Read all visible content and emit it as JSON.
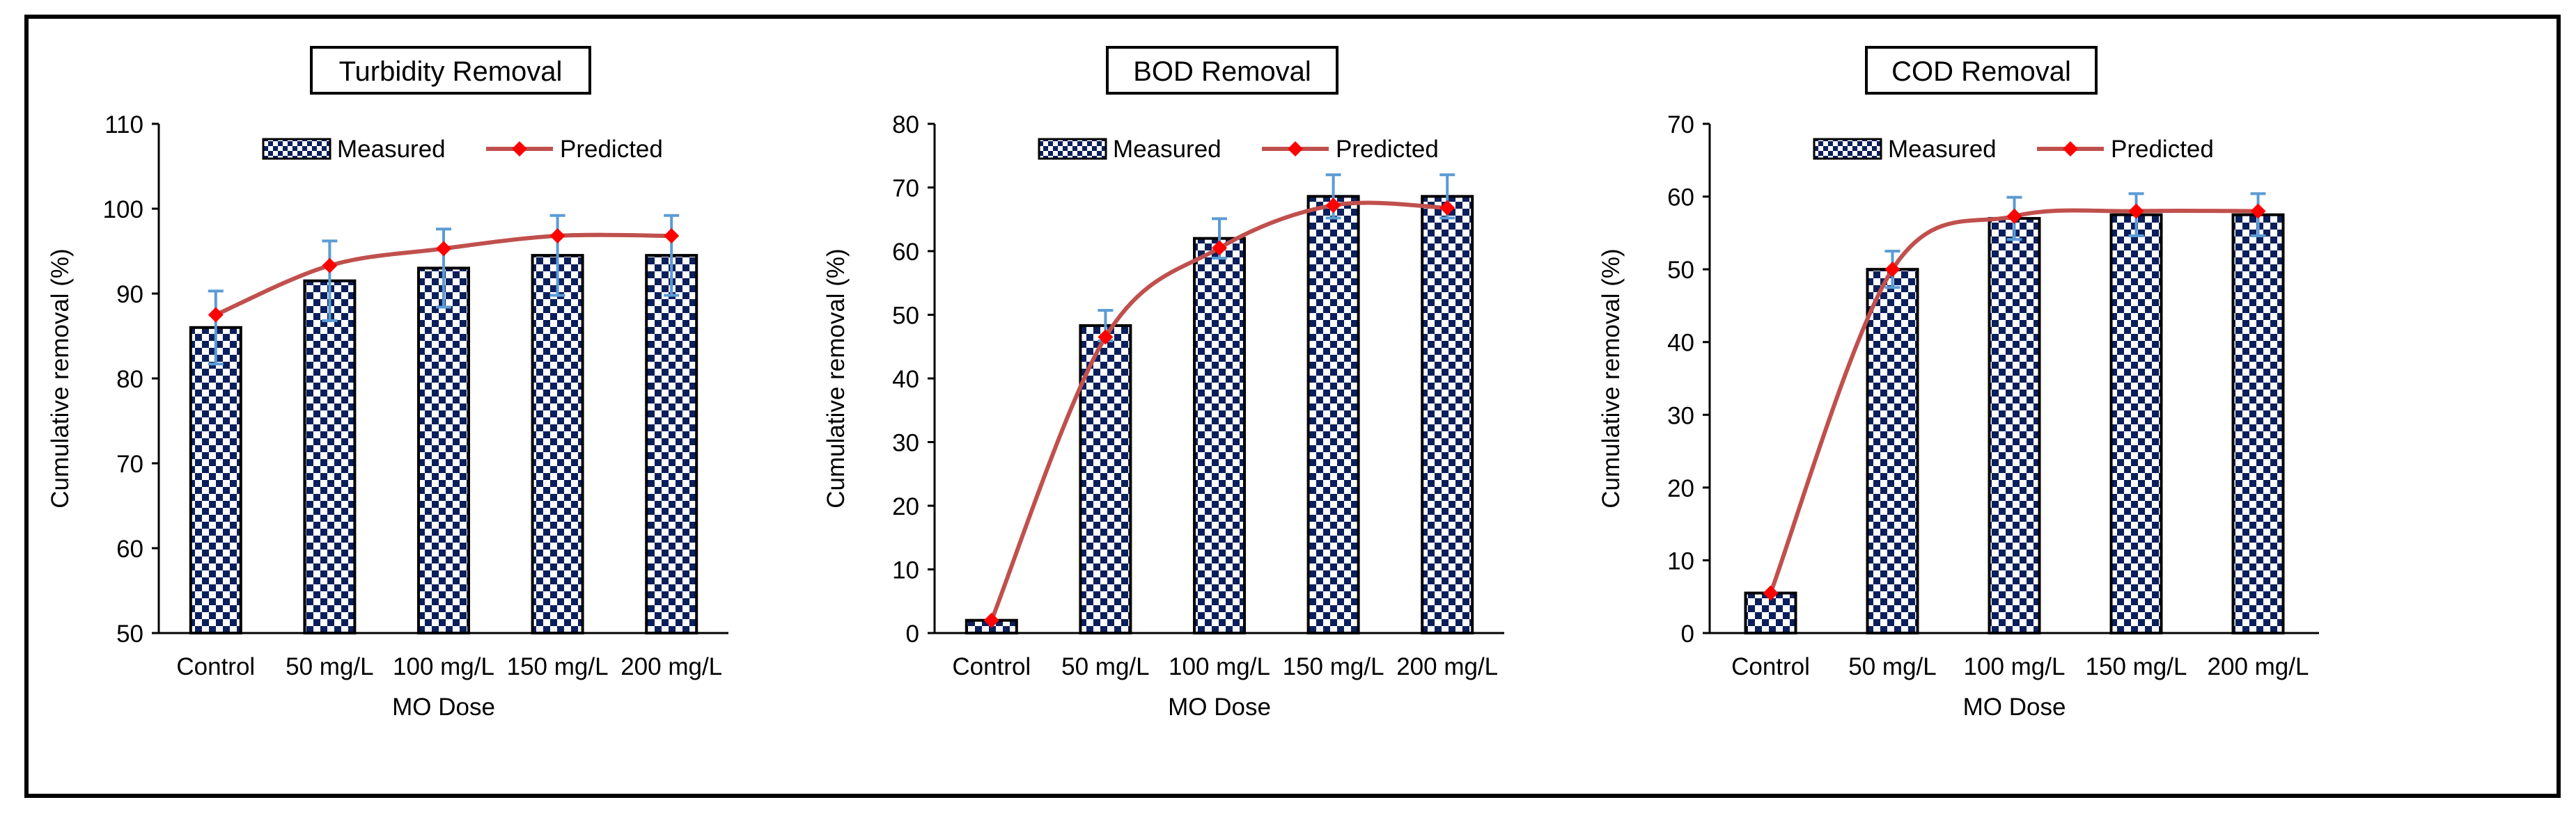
{
  "colors": {
    "bar_dark": "#0b1f5c",
    "bar_light": "#ffffff",
    "predicted_line": "#c0504d",
    "predicted_marker": "#ff0000",
    "error_bar": "#5b9bd5",
    "frame": "#000000"
  },
  "legend": {
    "measured": "Measured",
    "predicted": "Predicted"
  },
  "chart_data": [
    {
      "type": "bar",
      "title": "Turbidity Removal",
      "xlabel": "MO Dose",
      "ylabel": "Cumulative removal (%)",
      "categories": [
        "Control",
        "50 mg/L",
        "100 mg/L",
        "150 mg/L",
        "200 mg/L"
      ],
      "ylim": [
        50,
        110
      ],
      "yticks": [
        "50",
        "60",
        "70",
        "80",
        "90",
        "100",
        "110"
      ],
      "series": [
        {
          "name": "Measured",
          "kind": "bar",
          "values": [
            86,
            91.5,
            93,
            94.5,
            94.5
          ],
          "errors": [
            4.3,
            4.7,
            4.6,
            4.7,
            4.7
          ]
        },
        {
          "name": "Predicted",
          "kind": "line",
          "values": [
            87.5,
            93.3,
            95.3,
            96.8,
            96.8
          ]
        }
      ]
    },
    {
      "type": "bar",
      "title": "BOD Removal",
      "xlabel": "MO Dose",
      "ylabel": "Cumulative removal (%)",
      "categories": [
        "Control",
        "50 mg/L",
        "100 mg/L",
        "150 mg/L",
        "200 mg/L"
      ],
      "ylim": [
        0,
        80
      ],
      "yticks": [
        "0",
        "10",
        "20",
        "30",
        "40",
        "50",
        "60",
        "70",
        "80"
      ],
      "series": [
        {
          "name": "Measured",
          "kind": "bar",
          "values": [
            2,
            48.3,
            62,
            68.6,
            68.6
          ],
          "errors": [
            0,
            2.4,
            3.1,
            3.4,
            3.4
          ]
        },
        {
          "name": "Predicted",
          "kind": "line",
          "values": [
            2,
            46.5,
            60.5,
            67.2,
            66.8
          ]
        }
      ]
    },
    {
      "type": "bar",
      "title": "COD Removal",
      "xlabel": "MO Dose",
      "ylabel": "Cumulative removal (%)",
      "categories": [
        "Control",
        "50 mg/L",
        "100 mg/L",
        "150 mg/L",
        "200 mg/L"
      ],
      "ylim": [
        0,
        70
      ],
      "yticks": [
        "0",
        "10",
        "20",
        "30",
        "40",
        "50",
        "60",
        "70"
      ],
      "series": [
        {
          "name": "Measured",
          "kind": "bar",
          "values": [
            5.5,
            50,
            57,
            57.5,
            57.5
          ],
          "errors": [
            0,
            2.5,
            2.9,
            2.9,
            2.9
          ]
        },
        {
          "name": "Predicted",
          "kind": "line",
          "values": [
            5.5,
            50,
            57.3,
            58,
            58
          ]
        }
      ]
    }
  ]
}
